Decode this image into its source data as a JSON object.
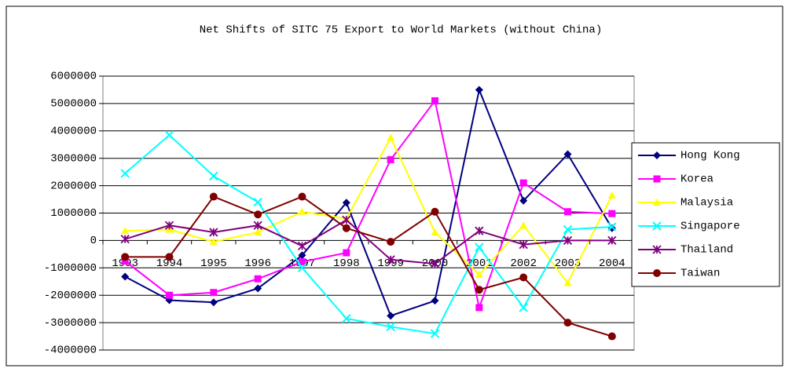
{
  "chart_data": {
    "type": "line",
    "title": "Net Shifts of SITC 75 Export to World Markets (without China)",
    "categories": [
      "1993",
      "1994",
      "1995",
      "1996",
      "1997",
      "1998",
      "1999",
      "2000",
      "2001",
      "2002",
      "2003",
      "2004"
    ],
    "ylim": [
      -4000000,
      6000000
    ],
    "yticks": [
      -4000000,
      -3000000,
      -2000000,
      -1000000,
      0,
      1000000,
      2000000,
      3000000,
      4000000,
      5000000,
      6000000
    ],
    "grid": true,
    "legend": "right",
    "series": [
      {
        "name": "Hong Kong",
        "color": "#000080",
        "marker": "diamond",
        "values": [
          -1320000,
          -2180000,
          -2260000,
          -1750000,
          -540000,
          1380000,
          -2750000,
          -2200000,
          5500000,
          1450000,
          3150000,
          450000
        ]
      },
      {
        "name": "Korea",
        "color": "#ff00ff",
        "marker": "square",
        "values": [
          -750000,
          -2000000,
          -1900000,
          -1400000,
          -780000,
          -450000,
          2950000,
          5100000,
          -2450000,
          2100000,
          1050000,
          980000
        ]
      },
      {
        "name": "Malaysia",
        "color": "#ffff00",
        "marker": "triangle",
        "values": [
          350000,
          400000,
          -50000,
          300000,
          1050000,
          800000,
          3750000,
          300000,
          -1250000,
          550000,
          -1550000,
          1650000
        ]
      },
      {
        "name": "Singapore",
        "color": "#00ffff",
        "marker": "cross",
        "values": [
          2450000,
          3850000,
          2350000,
          1400000,
          -1000000,
          -2850000,
          -3150000,
          -3400000,
          -250000,
          -2450000,
          400000,
          500000
        ]
      },
      {
        "name": "Thailand",
        "color": "#800080",
        "marker": "star",
        "values": [
          50000,
          550000,
          300000,
          550000,
          -200000,
          750000,
          -700000,
          -850000,
          350000,
          -150000,
          0,
          0
        ]
      },
      {
        "name": "Taiwan",
        "color": "#800000",
        "marker": "circle",
        "values": [
          -600000,
          -600000,
          1600000,
          950000,
          1600000,
          450000,
          -50000,
          1050000,
          -1800000,
          -1350000,
          -3000000,
          -3500000
        ]
      }
    ]
  }
}
